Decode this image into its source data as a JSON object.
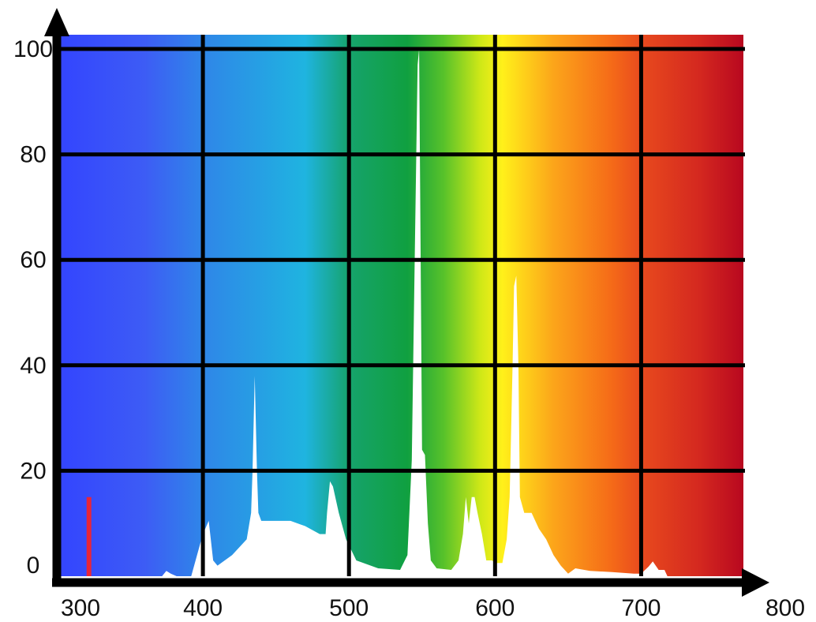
{
  "chart_data": {
    "type": "area",
    "title": "",
    "xlabel": "",
    "ylabel": "",
    "xlim": [
      300,
      770
    ],
    "ylim": [
      0,
      100
    ],
    "grid": true,
    "x_ticks": [
      300,
      400,
      500,
      600,
      700,
      800
    ],
    "x_tick_labels": [
      "300",
      "400",
      "500",
      "600",
      "700",
      "800"
    ],
    "y_ticks": [
      0,
      20,
      40,
      60,
      80,
      100
    ],
    "y_tick_labels": [
      "0",
      "20",
      "40",
      "60",
      "80",
      "100"
    ],
    "background_gradient": [
      {
        "x": 300,
        "color": "#3344ff"
      },
      {
        "x": 360,
        "color": "#3d5cf5"
      },
      {
        "x": 400,
        "color": "#2f86e8"
      },
      {
        "x": 470,
        "color": "#1fb4e0"
      },
      {
        "x": 500,
        "color": "#16a36c"
      },
      {
        "x": 540,
        "color": "#10a040"
      },
      {
        "x": 565,
        "color": "#58c22a"
      },
      {
        "x": 590,
        "color": "#cfe817"
      },
      {
        "x": 605,
        "color": "#fff01a"
      },
      {
        "x": 640,
        "color": "#fca51a"
      },
      {
        "x": 680,
        "color": "#f56a18"
      },
      {
        "x": 700,
        "color": "#e84a1e"
      },
      {
        "x": 740,
        "color": "#d4281f"
      },
      {
        "x": 770,
        "color": "#b8081f"
      }
    ],
    "series": [
      {
        "color": "#ffffff",
        "points": [
          [
            372,
            0
          ],
          [
            375,
            1
          ],
          [
            378,
            0.5
          ],
          [
            382,
            0
          ],
          [
            392,
            0
          ],
          [
            396,
            4
          ],
          [
            400,
            8
          ],
          [
            404,
            10.5
          ],
          [
            407,
            3
          ],
          [
            410,
            2
          ],
          [
            420,
            4
          ],
          [
            430,
            7
          ],
          [
            433,
            12
          ],
          [
            434,
            20
          ],
          [
            435.5,
            38
          ],
          [
            437,
            20
          ],
          [
            438,
            12
          ],
          [
            440,
            10.5
          ],
          [
            460,
            10.5
          ],
          [
            470,
            9.5
          ],
          [
            480,
            8
          ],
          [
            484,
            8
          ],
          [
            485,
            12
          ],
          [
            487,
            18
          ],
          [
            489,
            17
          ],
          [
            493,
            12
          ],
          [
            498,
            7
          ],
          [
            505,
            3
          ],
          [
            520,
            1.5
          ],
          [
            535,
            1.2
          ],
          [
            540,
            4
          ],
          [
            543,
            22
          ],
          [
            545,
            60
          ],
          [
            547,
            97
          ],
          [
            548,
            100
          ],
          [
            550,
            24
          ],
          [
            552,
            23
          ],
          [
            554,
            10
          ],
          [
            556,
            3
          ],
          [
            560,
            1.5
          ],
          [
            570,
            1.2
          ],
          [
            575,
            3
          ],
          [
            578,
            8
          ],
          [
            580,
            15
          ],
          [
            582,
            10
          ],
          [
            584,
            15
          ],
          [
            586,
            15
          ],
          [
            588,
            12
          ],
          [
            591,
            8
          ],
          [
            594,
            3
          ],
          [
            598,
            3
          ],
          [
            600,
            2.5
          ],
          [
            605,
            2.5
          ],
          [
            608,
            7
          ],
          [
            610,
            15
          ],
          [
            612,
            40
          ],
          [
            613,
            55
          ],
          [
            614.5,
            57
          ],
          [
            616,
            40
          ],
          [
            617,
            15
          ],
          [
            620,
            12
          ],
          [
            625,
            12
          ],
          [
            630,
            9
          ],
          [
            635,
            7
          ],
          [
            640,
            4
          ],
          [
            645,
            2
          ],
          [
            650,
            0.5
          ],
          [
            655,
            1.5
          ],
          [
            665,
            1
          ],
          [
            680,
            0.8
          ],
          [
            695,
            0.5
          ],
          [
            700,
            0.5
          ],
          [
            705,
            1.8
          ],
          [
            708,
            2.8
          ],
          [
            712,
            1.2
          ],
          [
            716,
            1.2
          ],
          [
            718,
            0
          ]
        ]
      }
    ],
    "markers": [
      {
        "x": 322,
        "y0": 0,
        "y1": 15,
        "color": "#e8253a"
      }
    ]
  }
}
